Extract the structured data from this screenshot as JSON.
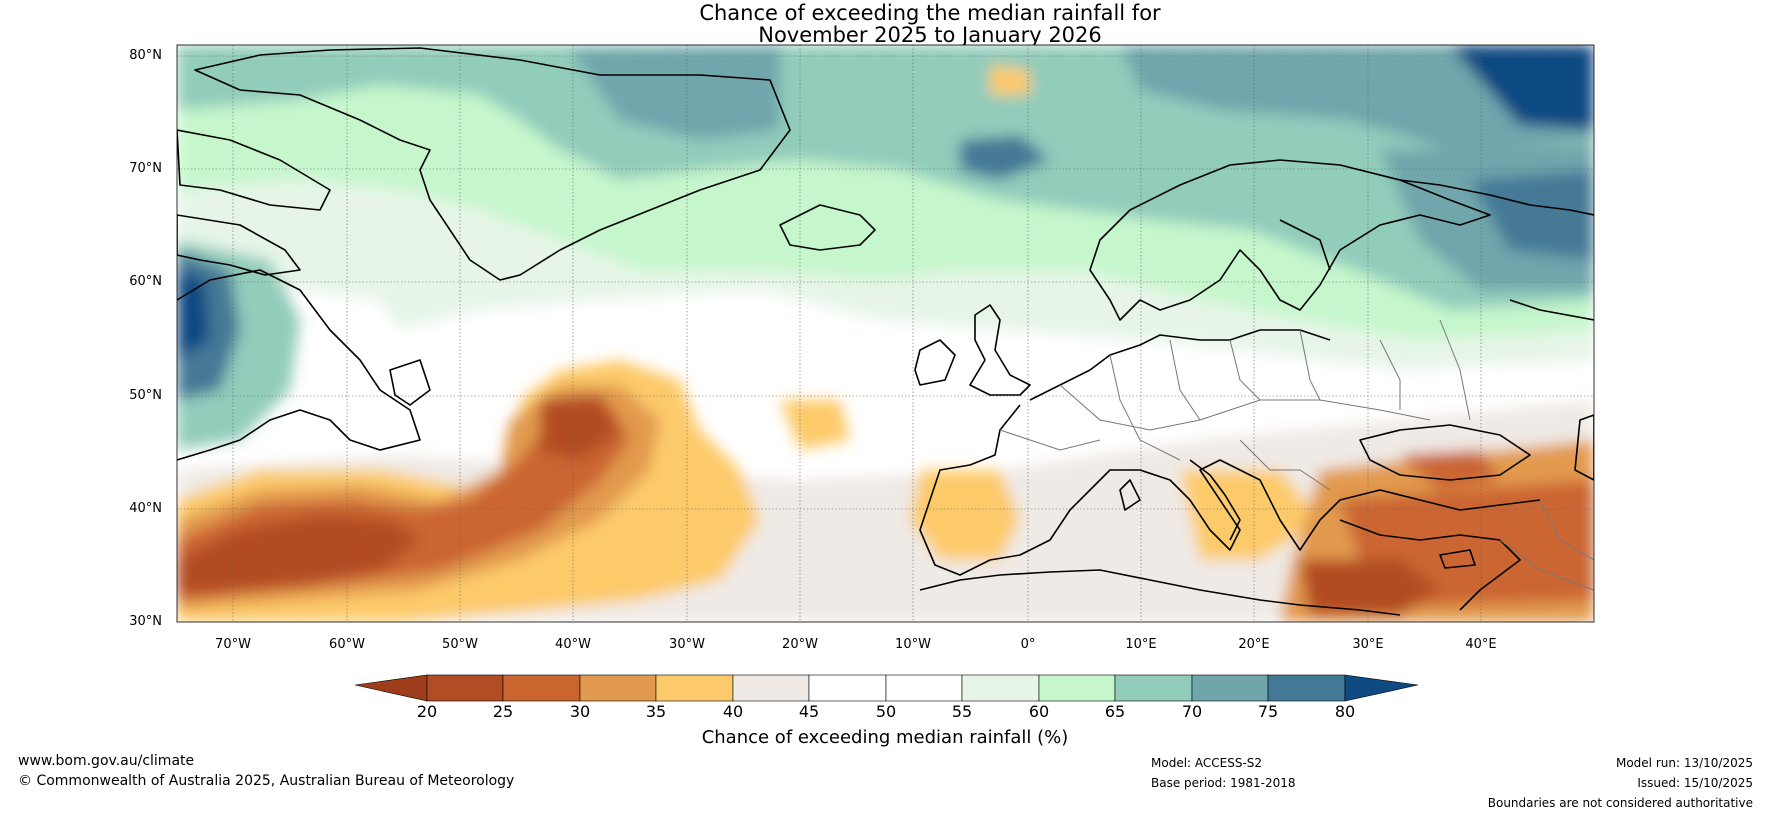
{
  "title": {
    "line1": "Chance of exceeding the median rainfall for",
    "line2": "November 2025 to January 2026"
  },
  "map": {
    "lat_labels": [
      "80°N",
      "70°N",
      "60°N",
      "50°N",
      "40°N",
      "30°N"
    ],
    "lon_labels": [
      "70°W",
      "60°W",
      "50°W",
      "40°W",
      "30°W",
      "20°W",
      "10°W",
      "0°",
      "10°E",
      "20°E",
      "30°E",
      "40°E"
    ],
    "features": [
      "dry-anomaly-region",
      "wet-anomaly-region",
      "land-coastlines",
      "country-borders",
      "graticule"
    ]
  },
  "colorbar": {
    "ticks": [
      "20",
      "25",
      "30",
      "35",
      "40",
      "45",
      "50",
      "55",
      "60",
      "65",
      "70",
      "75",
      "80"
    ],
    "colors": [
      "#9e3d1c",
      "#b24c24",
      "#cb6530",
      "#e29a4e",
      "#fdca6b",
      "#efeae5",
      "#ffffff",
      "#ffffff",
      "#e6f5e8",
      "#c6f7cc",
      "#92ccbb",
      "#6fa6ac",
      "#447996",
      "#104a82"
    ],
    "label": "Chance of exceeding median rainfall (%)"
  },
  "footer": {
    "website": "www.bom.gov.au/climate",
    "copyright": "© Commonwealth of Australia 2025, Australian Bureau of Meteorology",
    "model": "Model: ACCESS-S2",
    "base_period": "Base period: 1981-2018",
    "model_run": "Model run: 13/10/2025",
    "issued": "Issued: 15/10/2025",
    "disclaimer": "Boundaries are not considered authoritative"
  }
}
